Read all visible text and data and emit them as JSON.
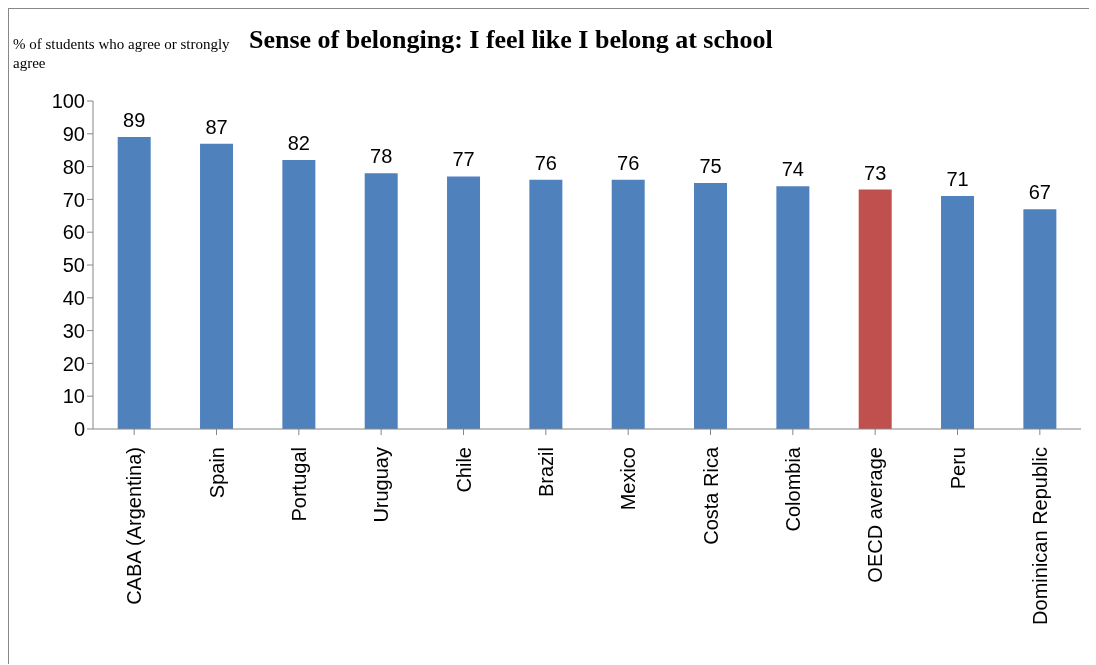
{
  "chart_data": {
    "type": "bar",
    "title": "Sense of belonging: I feel like I belong at school",
    "ylabel": "% of students who agree or strongly agree",
    "categories": [
      "CABA (Argentina)",
      "Spain",
      "Portugal",
      "Uruguay",
      "Chile",
      "Brazil",
      "Mexico",
      "Costa Rica",
      "Colombia",
      "OECD average",
      "Peru",
      "Dominican Republic"
    ],
    "values": [
      89,
      87,
      82,
      78,
      77,
      76,
      76,
      75,
      74,
      73,
      71,
      67
    ],
    "colors": [
      "#4f81bd",
      "#4f81bd",
      "#4f81bd",
      "#4f81bd",
      "#4f81bd",
      "#4f81bd",
      "#4f81bd",
      "#4f81bd",
      "#4f81bd",
      "#c0504d",
      "#4f81bd",
      "#4f81bd"
    ],
    "ylim": [
      0,
      100
    ],
    "yticks": [
      0,
      10,
      20,
      30,
      40,
      50,
      60,
      70,
      80,
      90,
      100
    ],
    "grid": false,
    "legend": false,
    "data_labels": true
  }
}
